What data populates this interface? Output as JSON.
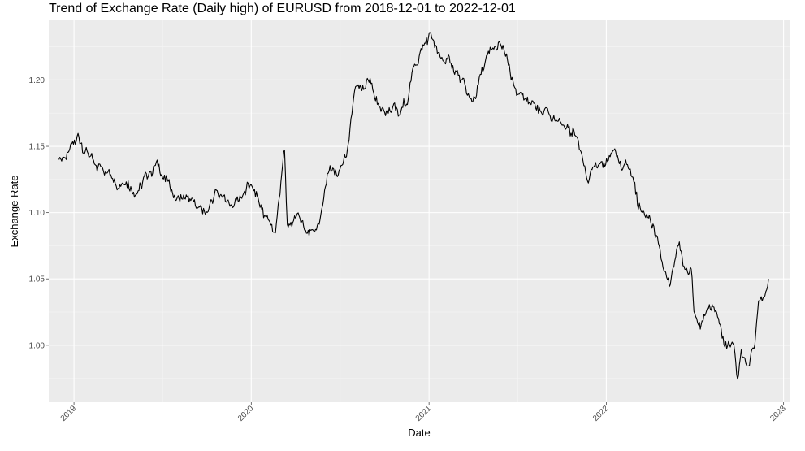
{
  "chart_data": {
    "type": "line",
    "title": "Trend of Exchange Rate (Daily high) of EURUSD from 2018-12-01 to 2022-12-01",
    "xlabel": "Date",
    "ylabel": "Exchange Rate",
    "x_ticks": [
      "2019",
      "2020",
      "2021",
      "2022",
      "2023"
    ],
    "x_tick_dates": [
      "2019-01-01",
      "2020-01-01",
      "2021-01-01",
      "2022-01-01",
      "2023-01-01"
    ],
    "y_ticks": [
      1.0,
      1.05,
      1.1,
      1.15,
      1.2
    ],
    "xlim": [
      "2018-11-10",
      "2023-01-15"
    ],
    "ylim": [
      0.957,
      1.245
    ],
    "grid": true,
    "series": [
      {
        "color": "#000000",
        "x": [
          "2018-12-01",
          "2018-12-15",
          "2019-01-01",
          "2019-01-10",
          "2019-01-20",
          "2019-02-01",
          "2019-02-15",
          "2019-03-01",
          "2019-03-20",
          "2019-04-01",
          "2019-04-20",
          "2019-05-05",
          "2019-05-20",
          "2019-06-05",
          "2019-06-20",
          "2019-07-01",
          "2019-07-20",
          "2019-08-01",
          "2019-08-20",
          "2019-09-01",
          "2019-09-20",
          "2019-10-01",
          "2019-10-20",
          "2019-11-01",
          "2019-11-20",
          "2019-12-01",
          "2019-12-20",
          "2020-01-01",
          "2020-01-20",
          "2020-02-01",
          "2020-02-20",
          "2020-03-01",
          "2020-03-09",
          "2020-03-15",
          "2020-03-23",
          "2020-04-01",
          "2020-04-20",
          "2020-05-01",
          "2020-05-20",
          "2020-06-01",
          "2020-06-10",
          "2020-06-20",
          "2020-07-01",
          "2020-07-20",
          "2020-08-01",
          "2020-08-20",
          "2020-09-01",
          "2020-09-20",
          "2020-10-01",
          "2020-10-20",
          "2020-11-01",
          "2020-11-20",
          "2020-12-01",
          "2020-12-20",
          "2021-01-06",
          "2021-01-20",
          "2021-02-01",
          "2021-02-20",
          "2021-03-05",
          "2021-03-31",
          "2021-04-15",
          "2021-05-01",
          "2021-05-25",
          "2021-06-10",
          "2021-06-20",
          "2021-07-01",
          "2021-07-20",
          "2021-08-01",
          "2021-08-20",
          "2021-09-01",
          "2021-09-20",
          "2021-10-01",
          "2021-10-20",
          "2021-11-01",
          "2021-11-24",
          "2021-12-01",
          "2021-12-20",
          "2022-01-01",
          "2022-01-14",
          "2022-02-01",
          "2022-02-10",
          "2022-02-25",
          "2022-03-07",
          "2022-03-20",
          "2022-04-01",
          "2022-04-20",
          "2022-05-01",
          "2022-05-12",
          "2022-05-30",
          "2022-06-10",
          "2022-06-25",
          "2022-07-01",
          "2022-07-14",
          "2022-08-01",
          "2022-08-20",
          "2022-09-01",
          "2022-09-20",
          "2022-09-28",
          "2022-10-05",
          "2022-10-20",
          "2022-11-01",
          "2022-11-10",
          "2022-11-20",
          "2022-12-01"
        ],
        "y": [
          1.14,
          1.143,
          1.148,
          1.155,
          1.15,
          1.145,
          1.13,
          1.135,
          1.13,
          1.125,
          1.128,
          1.12,
          1.12,
          1.13,
          1.138,
          1.13,
          1.118,
          1.11,
          1.11,
          1.105,
          1.1,
          1.1,
          1.115,
          1.11,
          1.105,
          1.11,
          1.115,
          1.12,
          1.105,
          1.095,
          1.085,
          1.12,
          1.148,
          1.09,
          1.085,
          1.1,
          1.09,
          1.085,
          1.095,
          1.115,
          1.135,
          1.13,
          1.128,
          1.15,
          1.19,
          1.188,
          1.195,
          1.18,
          1.175,
          1.18,
          1.17,
          1.19,
          1.21,
          1.225,
          1.235,
          1.215,
          1.215,
          1.21,
          1.2,
          1.18,
          1.2,
          1.215,
          1.225,
          1.215,
          1.195,
          1.19,
          1.18,
          1.185,
          1.175,
          1.18,
          1.172,
          1.165,
          1.16,
          1.16,
          1.125,
          1.135,
          1.13,
          1.135,
          1.148,
          1.135,
          1.148,
          1.12,
          1.105,
          1.1,
          1.095,
          1.07,
          1.055,
          1.045,
          1.078,
          1.06,
          1.055,
          1.02,
          1.01,
          1.03,
          1.02,
          1.0,
          1.0,
          0.97,
          0.995,
          0.985,
          1.0,
          1.03,
          1.035,
          1.05
        ]
      }
    ]
  }
}
